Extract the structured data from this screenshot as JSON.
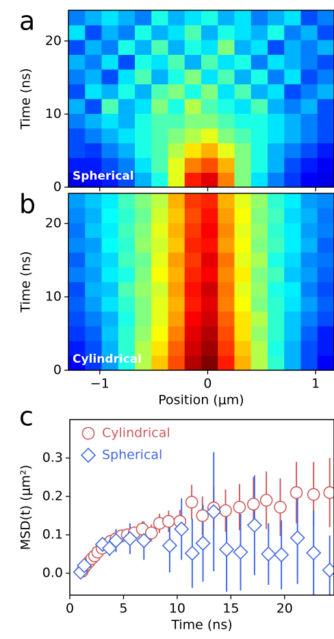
{
  "chart_data": [
    {
      "type": "heatmap",
      "panel_label": "a",
      "annotation": "Spherical",
      "ylabel": "Time (ns)",
      "colormap": "jet",
      "xlim": [
        -1.29,
        1.17
      ],
      "xticks": [
        -1,
        0,
        1
      ],
      "ylim": [
        0,
        24.2
      ],
      "yticks": [
        0,
        10,
        20
      ],
      "z": [
        [
          0.1,
          0.12,
          0.15,
          0.2,
          0.3,
          0.4,
          0.6,
          0.85,
          0.9,
          0.75,
          0.5,
          0.35,
          0.25,
          0.18,
          0.12,
          0.1
        ],
        [
          0.15,
          0.15,
          0.2,
          0.25,
          0.35,
          0.45,
          0.6,
          0.75,
          0.8,
          0.7,
          0.5,
          0.4,
          0.3,
          0.2,
          0.15,
          0.12
        ],
        [
          0.2,
          0.18,
          0.25,
          0.3,
          0.4,
          0.45,
          0.55,
          0.65,
          0.7,
          0.6,
          0.5,
          0.4,
          0.3,
          0.25,
          0.2,
          0.15
        ],
        [
          0.2,
          0.25,
          0.3,
          0.35,
          0.4,
          0.45,
          0.5,
          0.55,
          0.6,
          0.5,
          0.45,
          0.4,
          0.35,
          0.3,
          0.25,
          0.2
        ],
        [
          0.25,
          0.3,
          0.35,
          0.3,
          0.4,
          0.45,
          0.45,
          0.5,
          0.5,
          0.45,
          0.4,
          0.4,
          0.35,
          0.3,
          0.25,
          0.2
        ],
        [
          0.3,
          0.2,
          0.45,
          0.3,
          0.35,
          0.5,
          0.4,
          0.55,
          0.45,
          0.4,
          0.35,
          0.45,
          0.3,
          0.25,
          0.3,
          0.2
        ],
        [
          0.2,
          0.35,
          0.3,
          0.4,
          0.3,
          0.45,
          0.5,
          0.4,
          0.5,
          0.35,
          0.45,
          0.3,
          0.35,
          0.2,
          0.25,
          0.3
        ],
        [
          0.25,
          0.3,
          0.2,
          0.35,
          0.45,
          0.3,
          0.4,
          0.5,
          0.35,
          0.45,
          0.3,
          0.4,
          0.25,
          0.35,
          0.2,
          0.25
        ],
        [
          0.3,
          0.25,
          0.35,
          0.2,
          0.4,
          0.35,
          0.45,
          0.3,
          0.45,
          0.35,
          0.4,
          0.25,
          0.35,
          0.3,
          0.25,
          0.2
        ],
        [
          0.2,
          0.3,
          0.25,
          0.4,
          0.3,
          0.45,
          0.3,
          0.4,
          0.35,
          0.5,
          0.3,
          0.35,
          0.2,
          0.3,
          0.25,
          0.3
        ],
        [
          0.35,
          0.2,
          0.3,
          0.25,
          0.4,
          0.3,
          0.35,
          0.45,
          0.3,
          0.4,
          0.35,
          0.3,
          0.4,
          0.25,
          0.3,
          0.2
        ],
        [
          0.25,
          0.3,
          0.35,
          0.3,
          0.25,
          0.4,
          0.3,
          0.35,
          0.4,
          0.3,
          0.35,
          0.25,
          0.3,
          0.35,
          0.2,
          0.25
        ]
      ]
    },
    {
      "type": "heatmap",
      "panel_label": "b",
      "annotation": "Cylindrical",
      "ylabel": "Time (ns)",
      "xlabel": "Position (μm)",
      "colormap": "jet",
      "xlim": [
        -1.29,
        1.17
      ],
      "xticks": [
        {
          "value": -1,
          "label": "−1"
        },
        0,
        1
      ],
      "ylim": [
        0,
        24.1
      ],
      "yticks": [
        0,
        10,
        20
      ],
      "z": [
        [
          0.12,
          0.18,
          0.28,
          0.4,
          0.55,
          0.68,
          0.8,
          0.95,
          1.0,
          0.85,
          0.7,
          0.55,
          0.42,
          0.3,
          0.2,
          0.12
        ],
        [
          0.15,
          0.2,
          0.3,
          0.42,
          0.55,
          0.65,
          0.78,
          0.92,
          0.97,
          0.82,
          0.68,
          0.55,
          0.4,
          0.3,
          0.2,
          0.15
        ],
        [
          0.18,
          0.22,
          0.32,
          0.42,
          0.52,
          0.62,
          0.75,
          0.9,
          0.95,
          0.8,
          0.65,
          0.52,
          0.42,
          0.32,
          0.22,
          0.15
        ],
        [
          0.2,
          0.25,
          0.3,
          0.4,
          0.5,
          0.6,
          0.72,
          0.88,
          0.92,
          0.78,
          0.65,
          0.55,
          0.42,
          0.32,
          0.25,
          0.2
        ],
        [
          0.22,
          0.28,
          0.35,
          0.42,
          0.5,
          0.6,
          0.7,
          0.85,
          0.9,
          0.75,
          0.62,
          0.5,
          0.42,
          0.35,
          0.28,
          0.22
        ],
        [
          0.2,
          0.3,
          0.32,
          0.45,
          0.52,
          0.58,
          0.72,
          0.86,
          0.92,
          0.76,
          0.6,
          0.52,
          0.4,
          0.36,
          0.25,
          0.2
        ],
        [
          0.25,
          0.28,
          0.36,
          0.4,
          0.5,
          0.62,
          0.7,
          0.84,
          0.88,
          0.74,
          0.64,
          0.5,
          0.44,
          0.32,
          0.28,
          0.22
        ],
        [
          0.22,
          0.3,
          0.34,
          0.44,
          0.48,
          0.6,
          0.72,
          0.82,
          0.9,
          0.76,
          0.6,
          0.54,
          0.4,
          0.34,
          0.26,
          0.24
        ],
        [
          0.26,
          0.28,
          0.38,
          0.42,
          0.52,
          0.58,
          0.68,
          0.84,
          0.86,
          0.72,
          0.62,
          0.5,
          0.44,
          0.36,
          0.3,
          0.22
        ],
        [
          0.24,
          0.32,
          0.36,
          0.44,
          0.5,
          0.6,
          0.7,
          0.82,
          0.88,
          0.74,
          0.6,
          0.52,
          0.42,
          0.36,
          0.28,
          0.25
        ],
        [
          0.26,
          0.3,
          0.38,
          0.42,
          0.48,
          0.58,
          0.68,
          0.8,
          0.86,
          0.72,
          0.62,
          0.5,
          0.44,
          0.34,
          0.3,
          0.24
        ],
        [
          0.28,
          0.32,
          0.36,
          0.44,
          0.5,
          0.56,
          0.7,
          0.82,
          0.84,
          0.7,
          0.6,
          0.52,
          0.42,
          0.36,
          0.28,
          0.26
        ]
      ]
    },
    {
      "type": "errorbar",
      "panel_label": "c",
      "xlabel": "Time (ns)",
      "ylabel": "MSD(t) (μm²)",
      "legend": "upper left",
      "xlim": [
        0,
        24.6
      ],
      "xticks": [
        0,
        5,
        10,
        15,
        20
      ],
      "ylim": [
        -0.057,
        0.4
      ],
      "yticks": [
        {
          "value": 0,
          "label": "0.0"
        },
        0.1,
        0.2,
        0.3
      ],
      "series": [
        {
          "name": "Cylindrical",
          "color": "#cd5c5c",
          "marker": "circle",
          "x": [
            1.15,
            1.35,
            1.55,
            1.8,
            2.05,
            2.3,
            2.6,
            3.0,
            3.4,
            3.8,
            4.3,
            4.8,
            5.35,
            6.0,
            6.75,
            7.6,
            8.35,
            9.2,
            10.25,
            11.35,
            12.35,
            13.4,
            14.5,
            15.8,
            17.1,
            18.3,
            19.6,
            21.1,
            22.7,
            24.2
          ],
          "values": [
            0.005,
            0.015,
            0.022,
            0.03,
            0.038,
            0.045,
            0.055,
            0.065,
            0.075,
            0.083,
            0.09,
            0.097,
            0.1,
            0.105,
            0.115,
            0.105,
            0.13,
            0.135,
            0.135,
            0.185,
            0.15,
            0.17,
            0.163,
            0.172,
            0.18,
            0.19,
            0.172,
            0.21,
            0.205,
            0.21
          ],
          "errors": [
            0.002,
            0.003,
            0.004,
            0.005,
            0.005,
            0.006,
            0.007,
            0.008,
            0.009,
            0.01,
            0.012,
            0.013,
            0.015,
            0.017,
            0.02,
            0.022,
            0.025,
            0.028,
            0.03,
            0.045,
            0.05,
            0.055,
            0.055,
            0.06,
            0.07,
            0.075,
            0.075,
            0.08,
            0.085,
            0.09
          ]
        },
        {
          "name": "Spherical",
          "color": "#4169e1",
          "marker": "diamond",
          "x": [
            1.0,
            1.35,
            3.05,
            3.7,
            4.3,
            5.6,
            6.9,
            9.3,
            10.4,
            11.4,
            12.4,
            13.4,
            14.6,
            15.9,
            17.2,
            18.5,
            19.7,
            21.2,
            22.7,
            24.2
          ],
          "values": [
            0.003,
            0.02,
            0.075,
            0.065,
            0.085,
            0.09,
            0.085,
            0.072,
            0.115,
            0.052,
            0.078,
            0.16,
            0.062,
            0.055,
            0.125,
            0.05,
            0.048,
            0.092,
            0.053,
            0.008
          ],
          "errors": [
            0.003,
            0.005,
            0.01,
            0.02,
            0.03,
            0.04,
            0.05,
            0.07,
            0.08,
            0.09,
            0.1,
            0.155,
            0.11,
            0.1,
            0.13,
            0.08,
            0.09,
            0.12,
            0.11,
            0.09
          ]
        }
      ]
    }
  ]
}
